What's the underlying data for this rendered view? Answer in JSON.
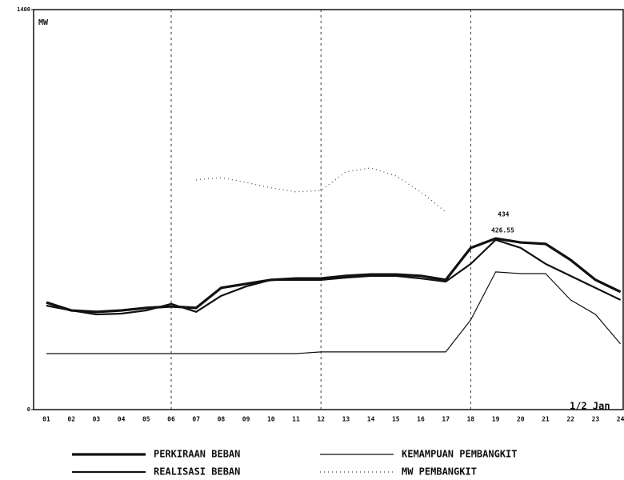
{
  "chart_data": {
    "type": "line",
    "y_label": "MW",
    "categories": [
      "01",
      "02",
      "03",
      "04",
      "05",
      "06",
      "07",
      "08",
      "09",
      "10",
      "11",
      "12",
      "13",
      "14",
      "15",
      "16",
      "17",
      "18",
      "19",
      "20",
      "21",
      "22",
      "23",
      "24"
    ],
    "ylim": [
      0,
      1400
    ],
    "yticks": [
      0,
      1400
    ],
    "vlines": [
      "06",
      "12",
      "18"
    ],
    "series": [
      {
        "name": "PERKIRAAN BEBAN",
        "color": "#111111",
        "style": "thick",
        "values": [
          375,
          347,
          342,
          347,
          356,
          361,
          356,
          426,
          440,
          454,
          459,
          459,
          468,
          473,
          473,
          468,
          454,
          566,
          599,
          585,
          580,
          524,
          454,
          412
        ]
      },
      {
        "name": "REALISASI BEBAN",
        "color": "#111111",
        "style": "medium",
        "values": [
          364,
          347,
          333,
          336,
          347,
          370,
          342,
          398,
          431,
          454,
          454,
          454,
          462,
          468,
          468,
          459,
          448,
          510,
          594,
          566,
          510,
          468,
          426,
          384
        ]
      },
      {
        "name": "KEMAMPUAN PEMBANGKIT",
        "color": "#111111",
        "style": "thin",
        "values": [
          196,
          196,
          196,
          196,
          196,
          196,
          196,
          196,
          196,
          196,
          196,
          202,
          202,
          202,
          202,
          202,
          202,
          314,
          482,
          476,
          476,
          384,
          333,
          230
        ]
      },
      {
        "name": "MW PEMBANGKIT",
        "color": "#444444",
        "style": "dotted",
        "values": [
          null,
          null,
          null,
          null,
          null,
          null,
          804,
          812,
          795,
          776,
          762,
          767,
          832,
          846,
          818,
          762,
          692,
          null,
          null,
          null,
          null,
          null,
          null,
          null
        ]
      }
    ],
    "annotations": [
      "434",
      "426.55",
      "1/2 Jan"
    ]
  }
}
